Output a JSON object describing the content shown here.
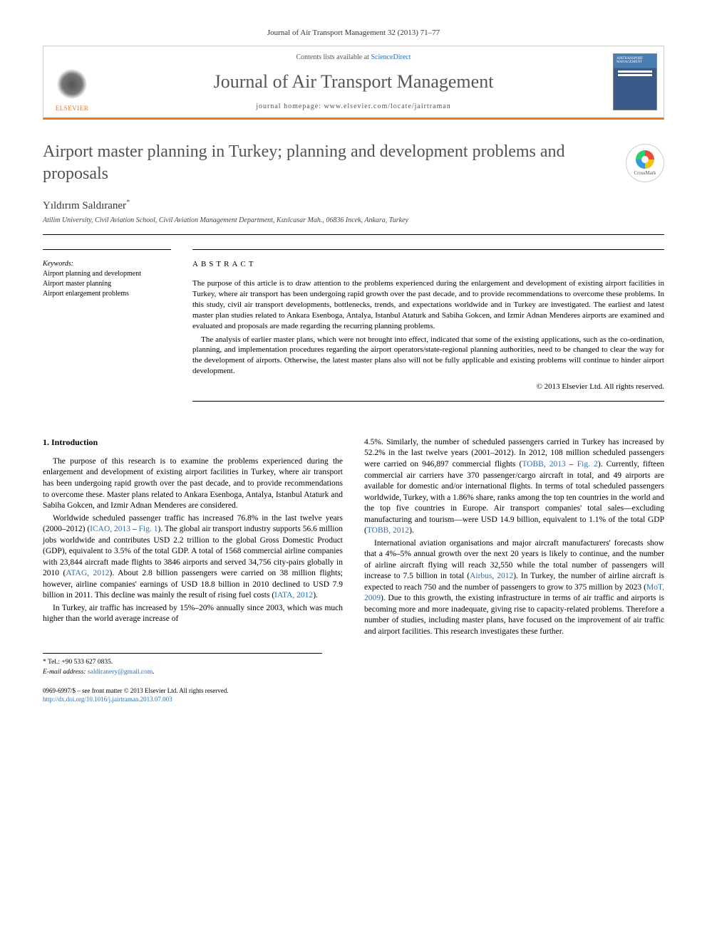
{
  "colors": {
    "accent_orange": "#e87722",
    "link_blue": "#2a6fb5",
    "title_gray": "#525252",
    "text": "#000000",
    "border": "#cccccc"
  },
  "typography": {
    "body_family": "Georgia, 'Times New Roman', serif",
    "title_size_pt": 24,
    "journal_name_size_pt": 26,
    "body_size_pt": 11.5,
    "abstract_size_pt": 11
  },
  "top_citation": "Journal of Air Transport Management 32 (2013) 71–77",
  "header": {
    "publisher_logo_label": "ELSEVIER",
    "contents_prefix": "Contents lists available at ",
    "contents_link": "ScienceDirect",
    "journal_name": "Journal of Air Transport Management",
    "homepage_prefix": "journal homepage: ",
    "homepage_url": "www.elsevier.com/locate/jairtraman",
    "cover_label": "AIRTRANSPORT MANAGEMENT"
  },
  "article": {
    "title": "Airport master planning in Turkey; planning and development problems and proposals",
    "crossmark_label": "CrossMark",
    "author": "Yıldırım Saldıraner",
    "author_marker": "*",
    "affiliation": "Atilim University, Civil Aviation School, Civil Aviation Management Department, Kızılcasar Mah., 06836 Incek, Ankara, Turkey"
  },
  "keywords": {
    "heading": "Keywords:",
    "items": [
      "Airport planning and development",
      "Airport master planning",
      "Airport enlargement problems"
    ]
  },
  "abstract": {
    "heading": "ABSTRACT",
    "p1": "The purpose of this article is to draw attention to the problems experienced during the enlargement and development of existing airport facilities in Turkey, where air transport has been undergoing rapid growth over the past decade, and to provide recommendations to overcome these problems. In this study, civil air transport developments, bottlenecks, trends, and expectations worldwide and in Turkey are investigated. The earliest and latest master plan studies related to Ankara Esenboga, Antalya, Istanbul Ataturk and Sabiha Gokcen, and Izmir Adnan Menderes airports are examined and evaluated and proposals are made regarding the recurring planning problems.",
    "p2": "The analysis of earlier master plans, which were not brought into effect, indicated that some of the existing applications, such as the co-ordination, planning, and implementation procedures regarding the airport operators/state-regional planning authorities, need to be changed to clear the way for the development of airports. Otherwise, the latest master plans also will not be fully applicable and existing problems will continue to hinder airport development.",
    "copyright": "© 2013 Elsevier Ltd. All rights reserved."
  },
  "sections": {
    "intro_heading": "1. Introduction"
  },
  "body": {
    "col1": {
      "p1": "The purpose of this research is to examine the problems experienced during the enlargement and development of existing airport facilities in Turkey, where air transport has been undergoing rapid growth over the past decade, and to provide recommendations to overcome these. Master plans related to Ankara Esenboga, Antalya, Istanbul Ataturk and Sabiha Gokcen, and Izmir Adnan Menderes are considered.",
      "p2a": "Worldwide scheduled passenger traffic has increased 76.8% in the last twelve years (2000–2012) (",
      "p2_cite1": "ICAO, 2013",
      "p2b": " – ",
      "p2_cite2": "Fig. 1",
      "p2c": "). The global air transport industry supports 56.6 million jobs worldwide and contributes USD 2.2 trillion to the global Gross Domestic Product (GDP), equivalent to 3.5% of the total GDP. A total of 1568 commercial airline companies with 23,844 aircraft made flights to 3846 airports and served 34,756 city-pairs globally in 2010 (",
      "p2_cite3": "ATAG, 2012",
      "p2d": "). About 2.8 billion passengers were carried on 38 million flights; however, airline companies' earnings of USD 18.8 billion in 2010 declined to USD 7.9 billion in 2011. This decline was mainly the result of rising fuel costs (",
      "p2_cite4": "IATA, 2012",
      "p2e": ").",
      "p3": "In Turkey, air traffic has increased by 15%–20% annually since 2003, which was much higher than the world average increase of"
    },
    "col2": {
      "p1a": "4.5%. Similarly, the number of scheduled passengers carried in Turkey has increased by 52.2% in the last twelve years (2001–2012). In 2012, 108 million scheduled passengers were carried on 946,897 commercial flights (",
      "p1_cite1": "TOBB, 2013",
      "p1b": " – ",
      "p1_cite2": "Fig. 2",
      "p1c": "). Currently, fifteen commercial air carriers have 370 passenger/cargo aircraft in total, and 49 airports are available for domestic and/or international flights. In terms of total scheduled passengers worldwide, Turkey, with a 1.86% share, ranks among the top ten countries in the world and the top five countries in Europe. Air transport companies' total sales—excluding manufacturing and tourism—were USD 14.9 billion, equivalent to 1.1% of the total GDP (",
      "p1_cite3": "TOBB, 2012",
      "p1d": ").",
      "p2a": "International aviation organisations and major aircraft manufacturers' forecasts show that a 4%–5% annual growth over the next 20 years is likely to continue, and the number of airline aircraft flying will reach 32,550 while the total number of passengers will increase to 7.5 billion in total (",
      "p2_cite1": "Airbus, 2012",
      "p2b": "). In Turkey, the number of airline aircraft is expected to reach 750 and the number of passengers to grow to 375 million by 2023 (",
      "p2_cite2": "MoT, 2009",
      "p2c": "). Due to this growth, the existing infrastructure in terms of air traffic and airports is becoming more and more inadequate, giving rise to capacity-related problems. Therefore a number of studies, including master plans, have focused on the improvement of air traffic and airport facilities. This research investigates these further."
    }
  },
  "footnote": {
    "tel_label": "* Tel.: ",
    "tel": "+90 533 627 0835.",
    "email_label": "E-mail address: ",
    "email": "saldiranery@gmail.com",
    "email_suffix": "."
  },
  "bottom": {
    "line1": "0969-6997/$ – see front matter © 2013 Elsevier Ltd. All rights reserved.",
    "doi": "http://dx.doi.org/10.1016/j.jairtraman.2013.07.003"
  }
}
